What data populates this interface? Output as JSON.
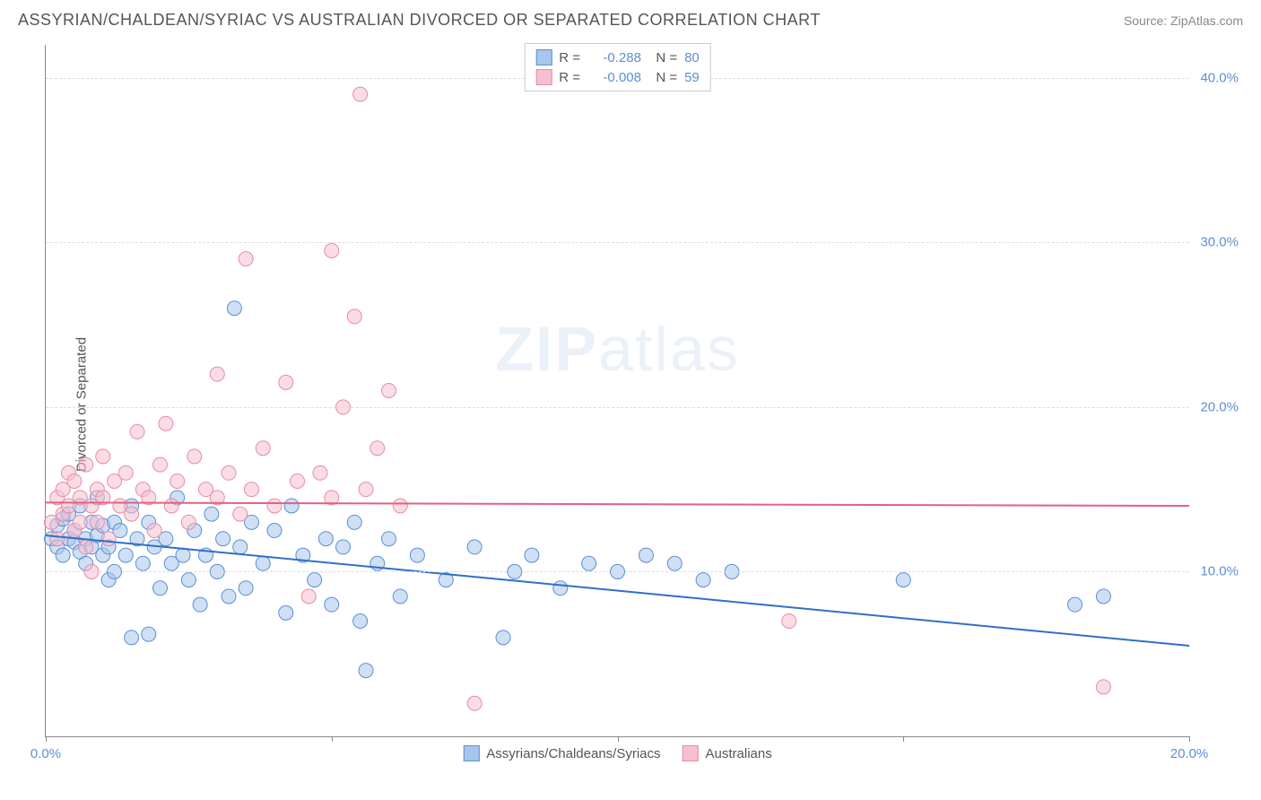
{
  "header": {
    "title": "ASSYRIAN/CHALDEAN/SYRIAC VS AUSTRALIAN DIVORCED OR SEPARATED CORRELATION CHART",
    "source_prefix": "Source: ",
    "source": "ZipAtlas.com"
  },
  "chart": {
    "type": "scatter",
    "ylabel": "Divorced or Separated",
    "watermark": "ZIPatlas",
    "xlim": [
      0,
      20
    ],
    "ylim": [
      0,
      42
    ],
    "xticks": [
      0,
      5,
      10,
      15,
      20
    ],
    "xtick_labels": [
      "0.0%",
      "",
      "",
      "",
      "20.0%"
    ],
    "yticks": [
      10,
      20,
      30,
      40
    ],
    "ytick_labels": [
      "10.0%",
      "20.0%",
      "30.0%",
      "40.0%"
    ],
    "background_color": "#ffffff",
    "grid_color": "#dddddd",
    "axis_color": "#888888",
    "marker_radius": 8,
    "marker_opacity": 0.55,
    "series": [
      {
        "name": "Assyrians/Chaldeans/Syriacs",
        "color_fill": "#a8c5eb",
        "color_stroke": "#5b8fd6",
        "R": "-0.288",
        "N": "80",
        "trend": {
          "y_at_x0": 12.2,
          "y_at_xmax": 5.5,
          "color": "#2f6fc9",
          "width": 2
        },
        "points": [
          [
            0.1,
            12.0
          ],
          [
            0.2,
            11.5
          ],
          [
            0.2,
            12.8
          ],
          [
            0.3,
            13.2
          ],
          [
            0.3,
            11.0
          ],
          [
            0.4,
            12.0
          ],
          [
            0.4,
            13.5
          ],
          [
            0.5,
            11.8
          ],
          [
            0.5,
            12.5
          ],
          [
            0.6,
            14.0
          ],
          [
            0.6,
            11.2
          ],
          [
            0.7,
            12.0
          ],
          [
            0.7,
            10.5
          ],
          [
            0.8,
            13.0
          ],
          [
            0.8,
            11.5
          ],
          [
            0.9,
            12.2
          ],
          [
            0.9,
            14.5
          ],
          [
            1.0,
            11.0
          ],
          [
            1.0,
            12.8
          ],
          [
            1.1,
            9.5
          ],
          [
            1.1,
            11.5
          ],
          [
            1.2,
            13.0
          ],
          [
            1.2,
            10.0
          ],
          [
            1.3,
            12.5
          ],
          [
            1.4,
            11.0
          ],
          [
            1.5,
            14.0
          ],
          [
            1.5,
            6.0
          ],
          [
            1.6,
            12.0
          ],
          [
            1.7,
            10.5
          ],
          [
            1.8,
            6.2
          ],
          [
            1.8,
            13.0
          ],
          [
            1.9,
            11.5
          ],
          [
            2.0,
            9.0
          ],
          [
            2.1,
            12.0
          ],
          [
            2.2,
            10.5
          ],
          [
            2.3,
            14.5
          ],
          [
            2.4,
            11.0
          ],
          [
            2.5,
            9.5
          ],
          [
            2.6,
            12.5
          ],
          [
            2.7,
            8.0
          ],
          [
            2.8,
            11.0
          ],
          [
            2.9,
            13.5
          ],
          [
            3.0,
            10.0
          ],
          [
            3.1,
            12.0
          ],
          [
            3.2,
            8.5
          ],
          [
            3.3,
            26.0
          ],
          [
            3.4,
            11.5
          ],
          [
            3.5,
            9.0
          ],
          [
            3.6,
            13.0
          ],
          [
            3.8,
            10.5
          ],
          [
            4.0,
            12.5
          ],
          [
            4.2,
            7.5
          ],
          [
            4.3,
            14.0
          ],
          [
            4.5,
            11.0
          ],
          [
            4.7,
            9.5
          ],
          [
            4.9,
            12.0
          ],
          [
            5.0,
            8.0
          ],
          [
            5.2,
            11.5
          ],
          [
            5.4,
            13.0
          ],
          [
            5.5,
            7.0
          ],
          [
            5.6,
            4.0
          ],
          [
            5.8,
            10.5
          ],
          [
            6.0,
            12.0
          ],
          [
            6.2,
            8.5
          ],
          [
            6.5,
            11.0
          ],
          [
            7.0,
            9.5
          ],
          [
            7.5,
            11.5
          ],
          [
            8.0,
            6.0
          ],
          [
            8.2,
            10.0
          ],
          [
            8.5,
            11.0
          ],
          [
            9.0,
            9.0
          ],
          [
            9.5,
            10.5
          ],
          [
            10.0,
            10.0
          ],
          [
            10.5,
            11.0
          ],
          [
            11.0,
            10.5
          ],
          [
            11.5,
            9.5
          ],
          [
            12.0,
            10.0
          ],
          [
            15.0,
            9.5
          ],
          [
            18.0,
            8.0
          ],
          [
            18.5,
            8.5
          ]
        ]
      },
      {
        "name": "Australians",
        "color_fill": "#f5c0cd",
        "color_stroke": "#e88ba5",
        "R": "-0.008",
        "N": "59",
        "trend": {
          "y_at_x0": 14.2,
          "y_at_xmax": 14.0,
          "color": "#e4607f",
          "width": 2
        },
        "points": [
          [
            0.1,
            13.0
          ],
          [
            0.2,
            14.5
          ],
          [
            0.2,
            12.0
          ],
          [
            0.3,
            15.0
          ],
          [
            0.3,
            13.5
          ],
          [
            0.4,
            14.0
          ],
          [
            0.4,
            16.0
          ],
          [
            0.5,
            12.5
          ],
          [
            0.5,
            15.5
          ],
          [
            0.6,
            13.0
          ],
          [
            0.6,
            14.5
          ],
          [
            0.7,
            11.5
          ],
          [
            0.7,
            16.5
          ],
          [
            0.8,
            14.0
          ],
          [
            0.8,
            10.0
          ],
          [
            0.9,
            15.0
          ],
          [
            0.9,
            13.0
          ],
          [
            1.0,
            14.5
          ],
          [
            1.0,
            17.0
          ],
          [
            1.1,
            12.0
          ],
          [
            1.2,
            15.5
          ],
          [
            1.3,
            14.0
          ],
          [
            1.4,
            16.0
          ],
          [
            1.5,
            13.5
          ],
          [
            1.6,
            18.5
          ],
          [
            1.7,
            15.0
          ],
          [
            1.8,
            14.5
          ],
          [
            1.9,
            12.5
          ],
          [
            2.0,
            16.5
          ],
          [
            2.1,
            19.0
          ],
          [
            2.2,
            14.0
          ],
          [
            2.3,
            15.5
          ],
          [
            2.5,
            13.0
          ],
          [
            2.6,
            17.0
          ],
          [
            2.8,
            15.0
          ],
          [
            3.0,
            22.0
          ],
          [
            3.0,
            14.5
          ],
          [
            3.2,
            16.0
          ],
          [
            3.4,
            13.5
          ],
          [
            3.5,
            29.0
          ],
          [
            3.6,
            15.0
          ],
          [
            3.8,
            17.5
          ],
          [
            4.0,
            14.0
          ],
          [
            4.2,
            21.5
          ],
          [
            4.4,
            15.5
          ],
          [
            4.6,
            8.5
          ],
          [
            4.8,
            16.0
          ],
          [
            5.0,
            29.5
          ],
          [
            5.0,
            14.5
          ],
          [
            5.2,
            20.0
          ],
          [
            5.4,
            25.5
          ],
          [
            5.5,
            39.0
          ],
          [
            5.6,
            15.0
          ],
          [
            5.8,
            17.5
          ],
          [
            6.0,
            21.0
          ],
          [
            6.2,
            14.0
          ],
          [
            7.5,
            2.0
          ],
          [
            13.0,
            7.0
          ],
          [
            18.5,
            3.0
          ]
        ]
      }
    ],
    "legend_bottom": [
      {
        "label": "Assyrians/Chaldeans/Syriacs",
        "fill": "#a8c5eb",
        "stroke": "#5b8fd6"
      },
      {
        "label": "Australians",
        "fill": "#f5c0cd",
        "stroke": "#e88ba5"
      }
    ]
  }
}
